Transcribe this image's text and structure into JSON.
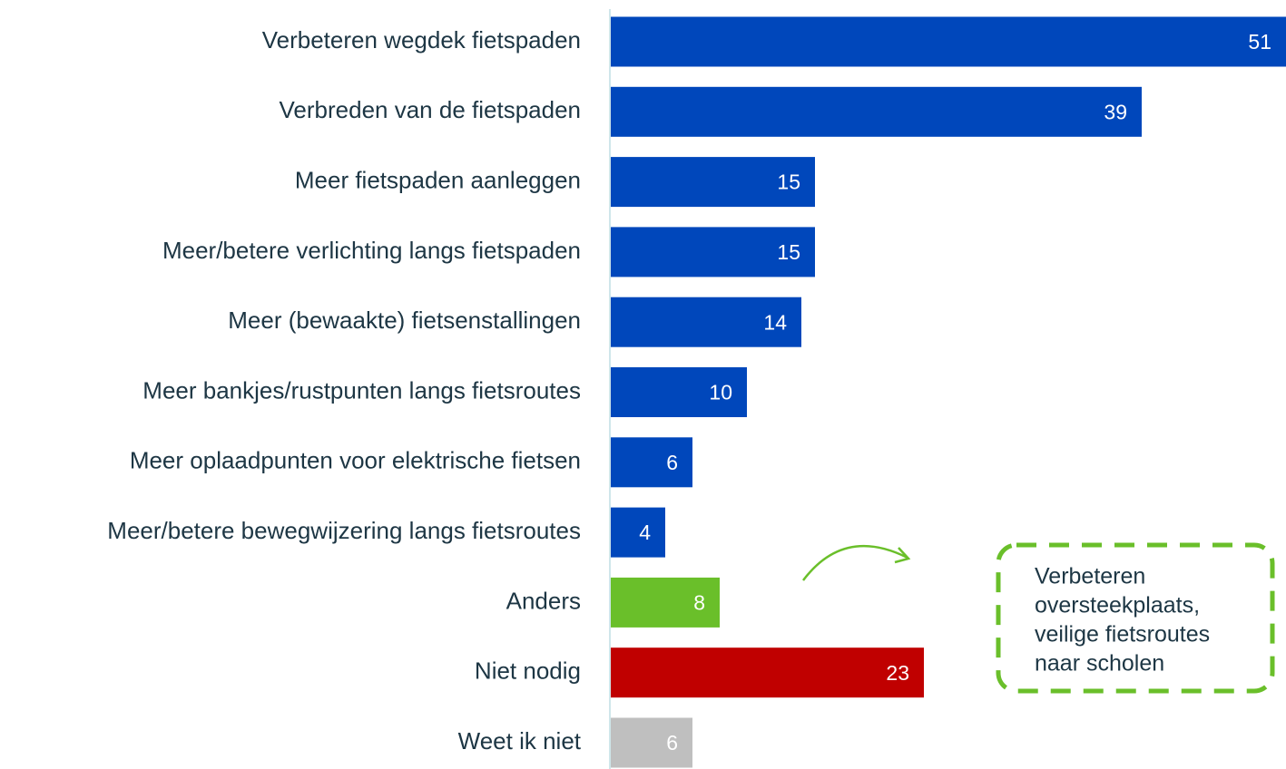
{
  "chart_data": {
    "type": "bar",
    "orientation": "horizontal",
    "categories": [
      "Verbeteren wegdek fietspaden",
      "Verbreden van de fietspaden",
      "Meer fietspaden aanleggen",
      "Meer/betere verlichting langs fietspaden",
      "Meer (bewaakte) fietsenstallingen",
      "Meer bankjes/rustpunten langs fietsroutes",
      "Meer oplaadpunten voor elektrische fietsen",
      "Meer/betere bewegwijzering langs fietsroutes",
      "Anders",
      "Niet nodig",
      "Weet ik niet"
    ],
    "values": [
      51,
      39,
      15,
      15,
      14,
      10,
      6,
      4,
      8,
      23,
      6
    ],
    "colors": [
      "#0047bb",
      "#0047bb",
      "#0047bb",
      "#0047bb",
      "#0047bb",
      "#0047bb",
      "#0047bb",
      "#0047bb",
      "#6abf2a",
      "#c00000",
      "#bfbfbf"
    ],
    "xlim": [
      0,
      50
    ],
    "annotation": {
      "lines": [
        "Verbeteren",
        "oversteekplaats,",
        "veilige fietsroutes",
        "naar scholen"
      ],
      "color": "#6abf2a"
    }
  }
}
